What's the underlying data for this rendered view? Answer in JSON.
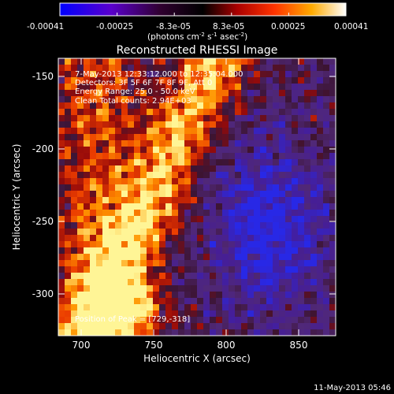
{
  "colorbar": {
    "ticks": [
      "-0.00041",
      "-0.00025",
      "-8.3e-05",
      "8.3e-05",
      "0.00025",
      "0.00041"
    ],
    "units_main": "(photons cm",
    "units_exp1": "-2",
    "units_mid": " s",
    "units_exp2": "-1",
    "units_end": " asec",
    "units_exp3": "-2",
    "units_close": ")"
  },
  "image": {
    "title": "Reconstructed RHESSI Image",
    "info": [
      "7-May-2013 12:33:12.000 to 12:35:04.000",
      "Detectors: 3F 5F 6F 7F 8F 9F, Att 0",
      "Energy Range: 25.0 - 50.0 keV",
      "Clean     Total counts: 2.94E+03"
    ],
    "peak_label": "Position of Peak = [729,-318]",
    "xlabel": "Heliocentric X (arcsec)",
    "ylabel": "Heliocentric Y (arcsec)",
    "x_ticks": [
      "700",
      "750",
      "800",
      "850"
    ],
    "y_ticks": [
      "-150",
      "-200",
      "-250",
      "-300"
    ]
  },
  "footer": {
    "timestamp": "11-May-2013 05:46"
  },
  "colors": {
    "background": "#000000",
    "text": "#ffffff"
  }
}
